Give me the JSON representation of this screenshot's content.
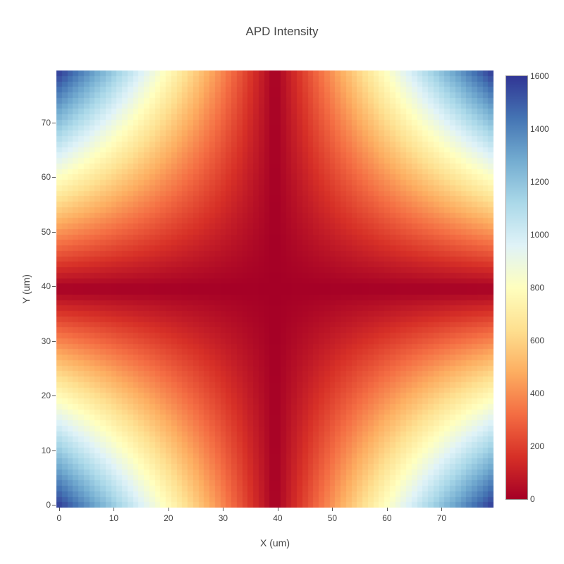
{
  "chart_data": {
    "type": "heatmap",
    "title": "APD Intensity",
    "xlabel": "X (um)",
    "ylabel": "Y (um)",
    "x_range": [
      0,
      79
    ],
    "y_range": [
      0,
      79
    ],
    "grid_size": 80,
    "zmin": 0,
    "zmax": 1600,
    "z_expression": "Math.abs(x - 39.5) * Math.abs(y - 39.5)",
    "z_description": "Intensity is ~0 along the dark-red cross at x~40 and y~40, rising to ~1600 (dark blue) in all four corners",
    "x_ticks": [
      0,
      10,
      20,
      30,
      40,
      50,
      60,
      70
    ],
    "y_ticks": [
      0,
      10,
      20,
      30,
      40,
      50,
      60,
      70
    ],
    "colorbar_ticks": [
      0,
      200,
      400,
      600,
      800,
      1000,
      1200,
      1400,
      1600
    ],
    "sample_x": [
      0,
      10,
      20,
      30,
      40,
      50,
      60,
      70,
      79
    ],
    "sample_y": [
      0,
      10,
      20,
      30,
      40,
      50,
      60,
      70,
      79
    ],
    "z_samples_rows_bottom_to_top": [
      [
        1560.25,
        1165.25,
        770.25,
        375.25,
        19.75,
        414.75,
        809.75,
        1204.75,
        1560.25
      ],
      [
        1165.25,
        870.25,
        575.25,
        280.25,
        14.75,
        309.75,
        604.75,
        899.75,
        1165.25
      ],
      [
        770.25,
        575.25,
        380.25,
        185.25,
        9.75,
        204.75,
        399.75,
        594.75,
        770.25
      ],
      [
        375.25,
        280.25,
        185.25,
        90.25,
        4.75,
        99.75,
        194.75,
        289.75,
        375.25
      ],
      [
        19.75,
        14.75,
        9.75,
        4.75,
        0.25,
        5.25,
        10.25,
        15.25,
        19.75
      ],
      [
        414.75,
        309.75,
        204.75,
        99.75,
        5.25,
        110.25,
        215.25,
        320.25,
        414.75
      ],
      [
        809.75,
        604.75,
        399.75,
        194.75,
        10.25,
        215.25,
        420.25,
        625.25,
        809.75
      ],
      [
        1204.75,
        899.75,
        594.75,
        289.75,
        15.25,
        320.25,
        625.25,
        930.25,
        1204.75
      ],
      [
        1560.25,
        1165.25,
        770.25,
        375.25,
        19.75,
        414.75,
        809.75,
        1204.75,
        1560.25
      ]
    ],
    "colorscale_name": "RdYlBu",
    "colorscale": [
      [
        0.0,
        "#a50026"
      ],
      [
        0.1,
        "#d73027"
      ],
      [
        0.2,
        "#f46d43"
      ],
      [
        0.3,
        "#fdae61"
      ],
      [
        0.4,
        "#fee090"
      ],
      [
        0.5,
        "#ffffbf"
      ],
      [
        0.6,
        "#e0f3f8"
      ],
      [
        0.7,
        "#abd9e9"
      ],
      [
        0.8,
        "#74add1"
      ],
      [
        0.9,
        "#4575b4"
      ],
      [
        1.0,
        "#313695"
      ]
    ],
    "legend_position": "right-colorbar",
    "grid_lines": false,
    "text_color": "#444444",
    "colorbar_outline_color": "#999999",
    "background_color": "#ffffff"
  }
}
